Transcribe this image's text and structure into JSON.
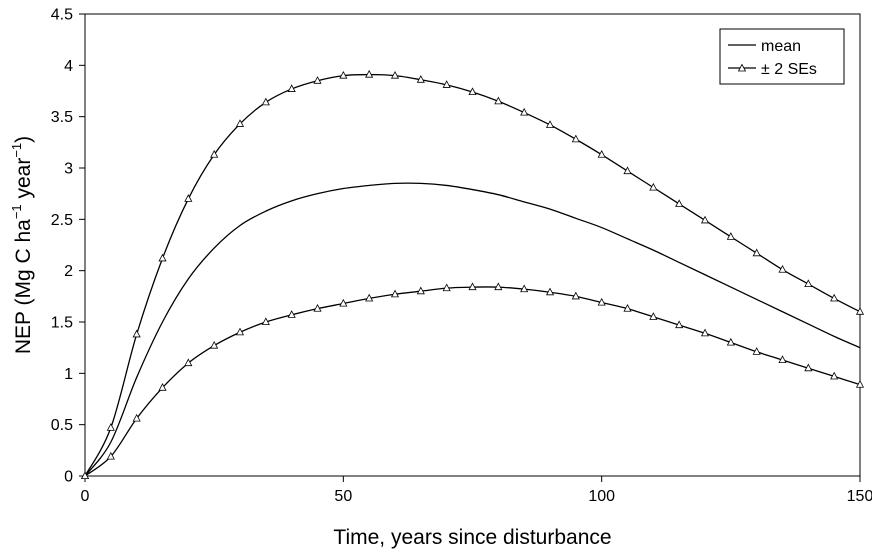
{
  "chart_data": {
    "type": "line",
    "xlabel": "Time, years since disturbance",
    "ylabel_parts": [
      "NEP (Mg C ha",
      "−1",
      " year",
      "−1",
      ")"
    ],
    "xlim": [
      0,
      150
    ],
    "ylim": [
      0,
      4.5
    ],
    "xticks": [
      0,
      50,
      100,
      150
    ],
    "yticks": [
      0,
      0.5,
      1,
      1.5,
      2,
      2.5,
      3,
      3.5,
      4,
      4.5
    ],
    "grid": false,
    "legend_position": "top-right",
    "x": [
      0,
      5,
      10,
      15,
      20,
      25,
      30,
      35,
      40,
      45,
      50,
      55,
      60,
      65,
      70,
      75,
      80,
      85,
      90,
      95,
      100,
      105,
      110,
      115,
      120,
      125,
      130,
      135,
      140,
      145,
      150
    ],
    "series": [
      {
        "name": "mean",
        "marker": "none",
        "values": [
          0,
          0.33,
          0.96,
          1.5,
          1.92,
          2.22,
          2.44,
          2.58,
          2.68,
          2.75,
          2.8,
          2.83,
          2.85,
          2.85,
          2.83,
          2.79,
          2.74,
          2.67,
          2.6,
          2.51,
          2.42,
          2.31,
          2.2,
          2.08,
          1.96,
          1.84,
          1.72,
          1.6,
          1.48,
          1.36,
          1.25
        ]
      },
      {
        "name": "± 2 SEs",
        "marker": "triangle",
        "values": [
          0,
          0.47,
          1.38,
          2.12,
          2.7,
          3.13,
          3.43,
          3.64,
          3.77,
          3.85,
          3.9,
          3.91,
          3.9,
          3.86,
          3.81,
          3.74,
          3.65,
          3.54,
          3.42,
          3.28,
          3.13,
          2.97,
          2.81,
          2.65,
          2.49,
          2.33,
          2.17,
          2.01,
          1.87,
          1.73,
          1.6
        ]
      },
      {
        "name": "",
        "marker": "triangle",
        "values": [
          0,
          0.19,
          0.56,
          0.86,
          1.1,
          1.27,
          1.4,
          1.5,
          1.57,
          1.63,
          1.68,
          1.73,
          1.77,
          1.8,
          1.83,
          1.84,
          1.84,
          1.82,
          1.79,
          1.75,
          1.69,
          1.63,
          1.55,
          1.47,
          1.39,
          1.3,
          1.21,
          1.13,
          1.05,
          0.97,
          0.89
        ]
      }
    ],
    "legend": [
      {
        "label": "mean",
        "marker": "none"
      },
      {
        "label": "± 2 SEs",
        "marker": "triangle"
      }
    ]
  }
}
